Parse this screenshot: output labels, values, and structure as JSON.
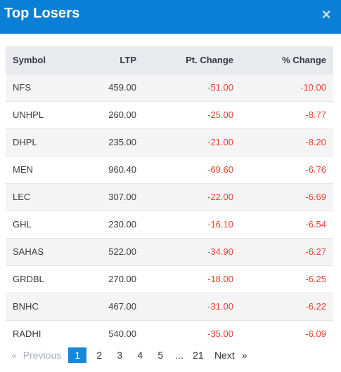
{
  "modal": {
    "title": "Top Losers",
    "close_label": "×"
  },
  "table": {
    "headers": {
      "symbol": "Symbol",
      "ltp": "LTP",
      "pt_change": "Pt. Change",
      "pct_change": "% Change"
    },
    "rows": [
      {
        "symbol": "NFS",
        "ltp": "459.00",
        "pt_change": "-51.00",
        "pct_change": "-10.00"
      },
      {
        "symbol": "UNHPL",
        "ltp": "260.00",
        "pt_change": "-25.00",
        "pct_change": "-8.77"
      },
      {
        "symbol": "DHPL",
        "ltp": "235.00",
        "pt_change": "-21.00",
        "pct_change": "-8.20"
      },
      {
        "symbol": "MEN",
        "ltp": "960.40",
        "pt_change": "-69.60",
        "pct_change": "-6.76"
      },
      {
        "symbol": "LEC",
        "ltp": "307.00",
        "pt_change": "-22.00",
        "pct_change": "-6.69"
      },
      {
        "symbol": "GHL",
        "ltp": "230.00",
        "pt_change": "-16.10",
        "pct_change": "-6.54"
      },
      {
        "symbol": "SAHAS",
        "ltp": "522.00",
        "pt_change": "-34.90",
        "pct_change": "-6.27"
      },
      {
        "symbol": "GRDBL",
        "ltp": "270.00",
        "pt_change": "-18.00",
        "pct_change": "-6.25"
      },
      {
        "symbol": "BNHC",
        "ltp": "467.00",
        "pt_change": "-31.00",
        "pct_change": "-6.22"
      },
      {
        "symbol": "RADHI",
        "ltp": "540.00",
        "pt_change": "-35.00",
        "pct_change": "-6.09"
      }
    ]
  },
  "pagination": {
    "prev_arrow": "«",
    "prev_label": "Previous",
    "pages": [
      "1",
      "2",
      "3",
      "4",
      "5"
    ],
    "gap": "...",
    "last_page": "21",
    "next_label": "Next",
    "next_arrow": "»",
    "current_page": "1"
  },
  "colors": {
    "header_bg": "#0a7fd6",
    "negative": "#e8402f",
    "active_page": "#1687d9"
  }
}
